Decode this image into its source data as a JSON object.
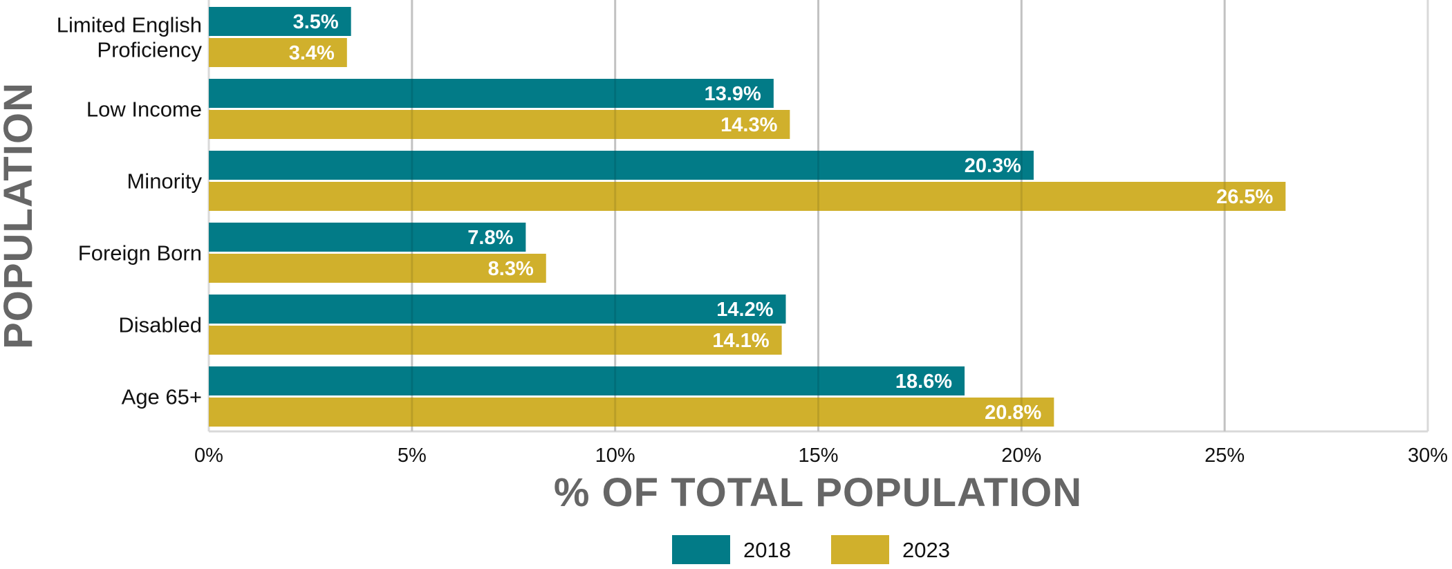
{
  "chart_data": {
    "type": "bar",
    "orientation": "horizontal",
    "title": "",
    "xlabel": "% OF TOTAL POPULATION",
    "ylabel": "POPULATION",
    "xlim": [
      0,
      30
    ],
    "x_ticks": [
      0,
      5,
      10,
      15,
      20,
      25,
      30
    ],
    "x_tick_labels": [
      "0%",
      "5%",
      "10%",
      "15%",
      "20%",
      "25%",
      "30%"
    ],
    "grid": "vertical",
    "legend_position": "bottom-center",
    "categories": [
      "Limited English Proficiency",
      "Low Income",
      "Minority",
      "Foreign Born",
      "Disabled",
      "Age 65+"
    ],
    "category_lines": [
      [
        "Limited English",
        "Proficiency"
      ],
      [
        "Low Income"
      ],
      [
        "Minority"
      ],
      [
        "Foreign Born"
      ],
      [
        "Disabled"
      ],
      [
        "Age 65+"
      ]
    ],
    "series": [
      {
        "name": "2018",
        "color": "#027B87",
        "values": [
          3.5,
          13.9,
          20.3,
          7.8,
          14.2,
          18.6
        ],
        "labels": [
          "3.5%",
          "13.9%",
          "20.3%",
          "7.8%",
          "14.2%",
          "18.6%"
        ]
      },
      {
        "name": "2023",
        "color": "#D0B02C",
        "values": [
          3.4,
          14.3,
          26.5,
          8.3,
          14.1,
          20.8
        ],
        "labels": [
          "3.4%",
          "14.3%",
          "26.5%",
          "8.3%",
          "14.1%",
          "20.8%"
        ]
      }
    ]
  }
}
